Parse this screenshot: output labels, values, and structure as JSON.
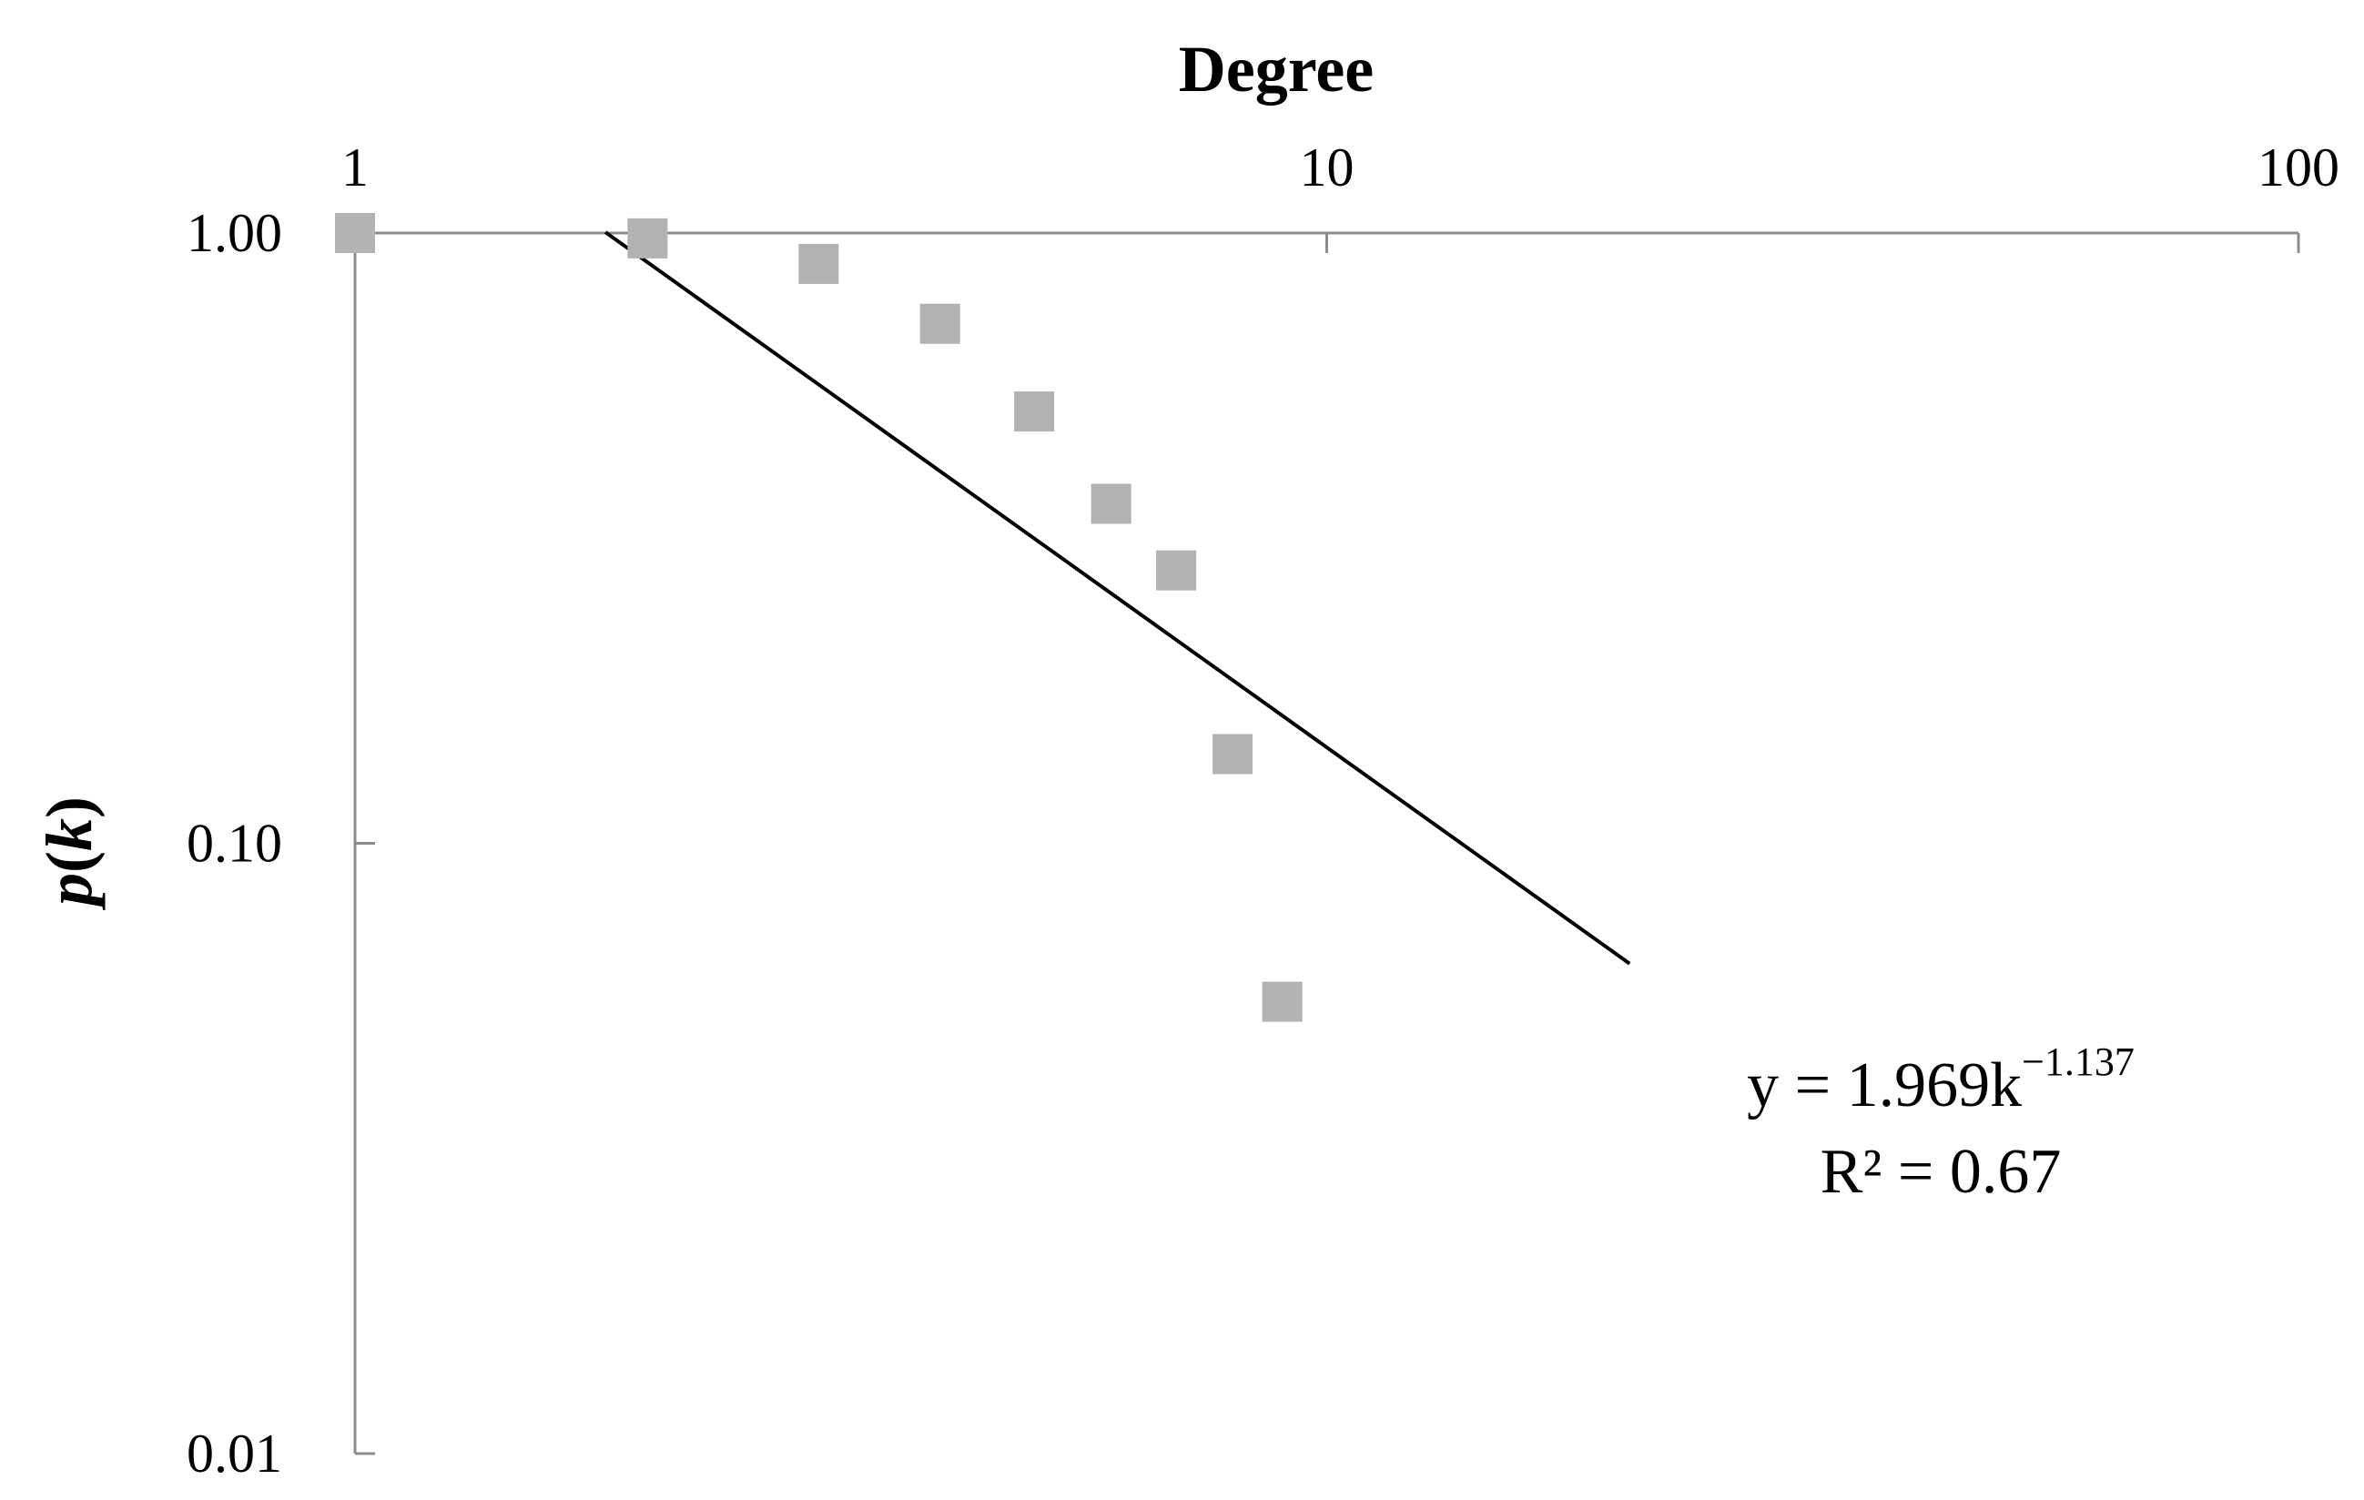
{
  "chart_data": {
    "type": "scatter",
    "xlabel": "Degree",
    "ylabel": "p(k)",
    "x_scale": "log",
    "y_scale": "log",
    "xlim": [
      1,
      100
    ],
    "ylim": [
      0.01,
      1
    ],
    "x_ticks": [
      {
        "value": 1,
        "label": "1"
      },
      {
        "value": 10,
        "label": "10"
      },
      {
        "value": 100,
        "label": "100"
      }
    ],
    "y_ticks": [
      {
        "value": 1,
        "label": "1.00"
      },
      {
        "value": 0.1,
        "label": "0.10"
      },
      {
        "value": 0.01,
        "label": "0.01"
      }
    ],
    "x_axis_position": "top",
    "grid": false,
    "series": [
      {
        "marker": "square",
        "color": "#b2b2b2",
        "points": [
          {
            "x": 1,
            "y": 1.0
          },
          {
            "x": 2,
            "y": 0.98
          },
          {
            "x": 3,
            "y": 0.89
          },
          {
            "x": 4,
            "y": 0.71
          },
          {
            "x": 5,
            "y": 0.51
          },
          {
            "x": 6,
            "y": 0.36
          },
          {
            "x": 7,
            "y": 0.28
          },
          {
            "x": 8,
            "y": 0.14
          },
          {
            "x": 9,
            "y": 0.055
          }
        ]
      }
    ],
    "trendline": {
      "type": "power",
      "color": "#000000",
      "coefficient": 1.969,
      "exponent": -1.137,
      "x_range": [
        1.81,
        20.5
      ],
      "equation_prefix": "y = 1.969k",
      "equation_exponent": "−1.137",
      "r_squared_label": "R² = 0.67"
    }
  }
}
